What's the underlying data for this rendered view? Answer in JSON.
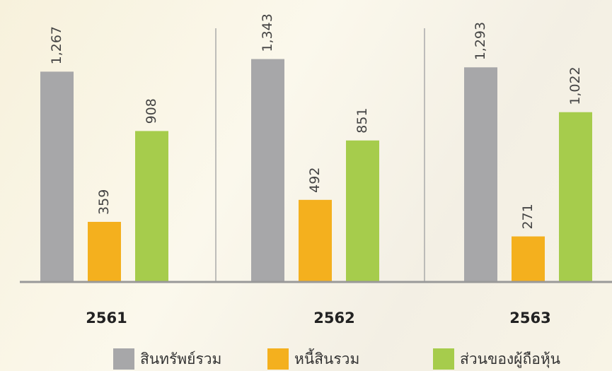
{
  "chart_data": {
    "type": "bar",
    "categories": [
      "2561",
      "2562",
      "2563"
    ],
    "ylim": [
      0,
      1700
    ],
    "series": [
      {
        "name": "สินทรัพย์รวม",
        "color": "#a7a7a9",
        "values": [
          1267,
          1343,
          1293
        ],
        "value_labels": [
          "1,267",
          "1,343",
          "1,293"
        ]
      },
      {
        "name": "หนี้สินรวม",
        "color": "#f4b01e",
        "values": [
          359,
          492,
          271
        ],
        "value_labels": [
          "359",
          "492",
          "271"
        ]
      },
      {
        "name": "ส่วนของผู้ถือหุ้น",
        "color": "#a6cc4c",
        "values": [
          908,
          851,
          1022
        ],
        "value_labels": [
          "908",
          "851",
          "1,022"
        ]
      }
    ]
  }
}
